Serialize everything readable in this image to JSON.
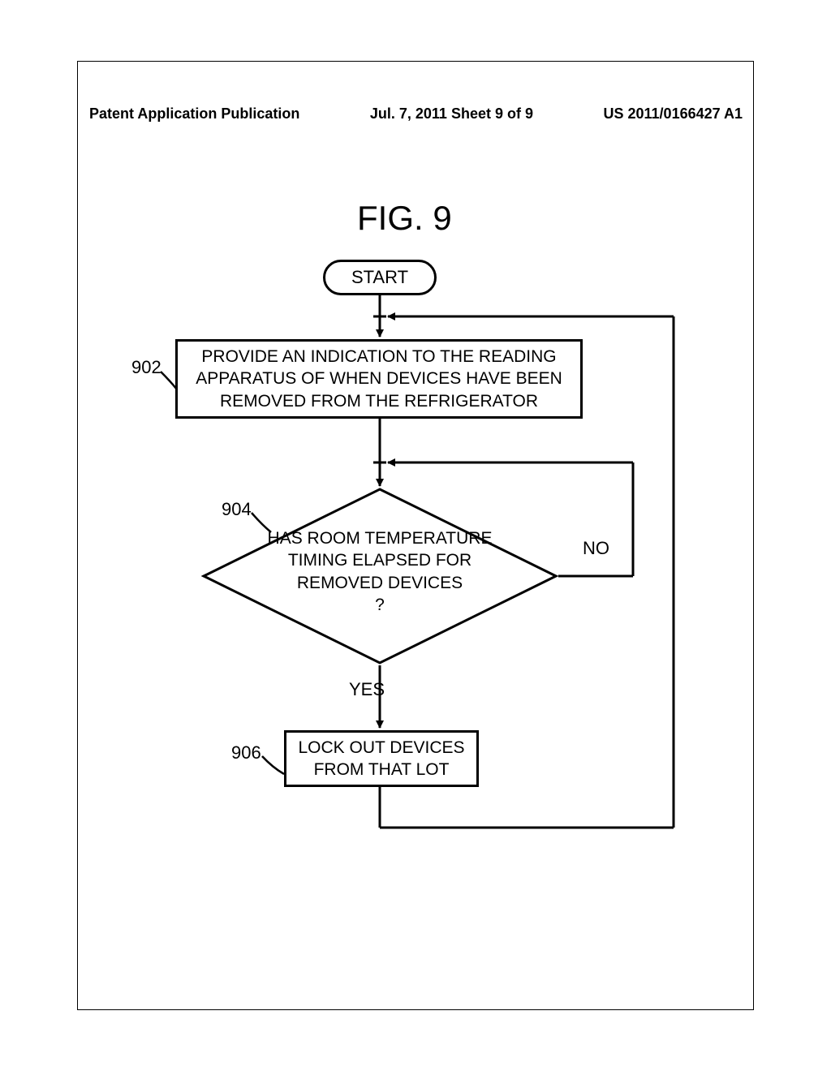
{
  "header": {
    "left": "Patent Application Publication",
    "center": "Jul. 7, 2011   Sheet 9 of 9",
    "right": "US 2011/0166427 A1"
  },
  "figure": {
    "title": "FIG. 9",
    "start": "START",
    "box_902": {
      "ref": "902",
      "text": "PROVIDE AN INDICATION TO THE READING APPARATUS OF WHEN DEVICES HAVE BEEN REMOVED FROM THE REFRIGERATOR"
    },
    "decision_904": {
      "ref": "904",
      "text": "HAS ROOM TEMPERATURE TIMING ELAPSED FOR REMOVED DEVICES\n?",
      "no": "NO",
      "yes": "YES"
    },
    "box_906": {
      "ref": "906",
      "text": "LOCK OUT DEVICES FROM THAT LOT"
    }
  },
  "style": {
    "stroke": "#000000",
    "stroke_width": 3,
    "bg": "#ffffff",
    "font_main": 21
  }
}
